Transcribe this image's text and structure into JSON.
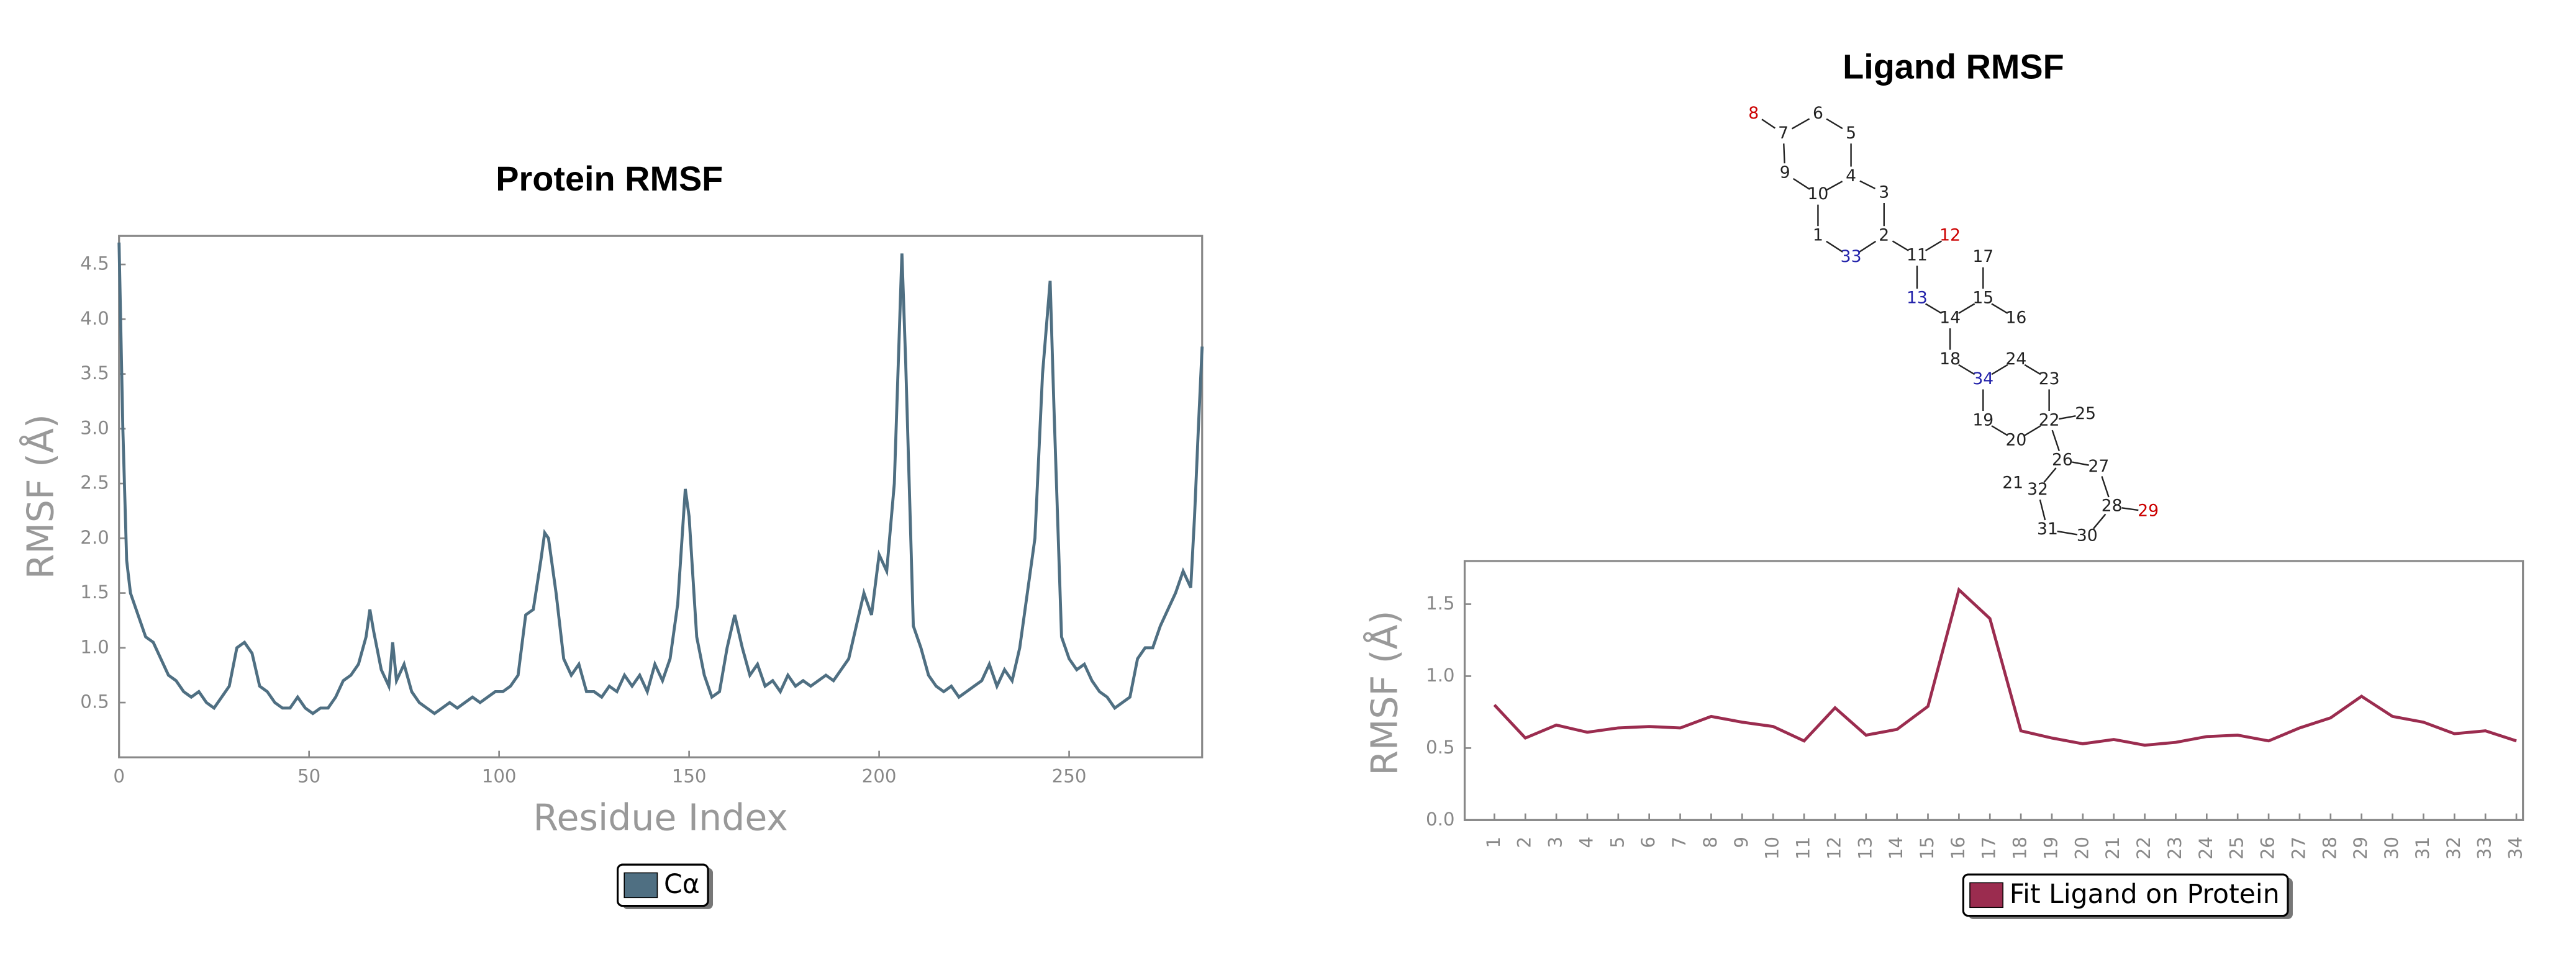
{
  "chart_data": [
    {
      "type": "line",
      "title": "Protein RMSF",
      "x_label": "Residue Index",
      "y_label": "RMSF (Å)",
      "x": [
        0,
        1,
        2,
        3,
        5,
        7,
        9,
        11,
        13,
        15,
        17,
        19,
        21,
        23,
        25,
        27,
        29,
        31,
        33,
        35,
        37,
        39,
        41,
        43,
        45,
        47,
        49,
        51,
        53,
        55,
        57,
        59,
        61,
        63,
        65,
        66,
        67,
        69,
        71,
        72,
        73,
        75,
        77,
        79,
        81,
        83,
        85,
        87,
        89,
        91,
        93,
        95,
        97,
        99,
        101,
        103,
        105,
        107,
        109,
        111,
        112,
        113,
        115,
        117,
        119,
        121,
        123,
        125,
        127,
        129,
        131,
        133,
        135,
        137,
        139,
        141,
        143,
        145,
        147,
        149,
        150,
        152,
        154,
        156,
        158,
        160,
        162,
        164,
        166,
        168,
        170,
        172,
        174,
        176,
        178,
        180,
        182,
        184,
        186,
        188,
        190,
        192,
        194,
        196,
        198,
        200,
        202,
        204,
        206,
        207,
        209,
        211,
        213,
        215,
        217,
        219,
        221,
        223,
        225,
        227,
        229,
        231,
        233,
        235,
        237,
        239,
        241,
        243,
        245,
        246,
        248,
        250,
        252,
        254,
        256,
        258,
        260,
        262,
        264,
        266,
        268,
        270,
        272,
        274,
        276,
        278,
        280,
        282,
        283,
        284,
        285
      ],
      "series": [
        {
          "name": "Cα",
          "color": "#4f6f82",
          "values": [
            4.7,
            3.0,
            1.8,
            1.5,
            1.3,
            1.1,
            1.05,
            0.9,
            0.75,
            0.7,
            0.6,
            0.55,
            0.6,
            0.5,
            0.45,
            0.55,
            0.65,
            1.0,
            1.05,
            0.95,
            0.65,
            0.6,
            0.5,
            0.45,
            0.45,
            0.55,
            0.45,
            0.4,
            0.45,
            0.45,
            0.55,
            0.7,
            0.75,
            0.85,
            1.1,
            1.35,
            1.15,
            0.8,
            0.65,
            1.05,
            0.7,
            0.85,
            0.6,
            0.5,
            0.45,
            0.4,
            0.45,
            0.5,
            0.45,
            0.5,
            0.55,
            0.5,
            0.55,
            0.6,
            0.6,
            0.65,
            0.75,
            1.3,
            1.35,
            1.8,
            2.05,
            2.0,
            1.5,
            0.9,
            0.75,
            0.85,
            0.6,
            0.6,
            0.55,
            0.65,
            0.6,
            0.75,
            0.65,
            0.75,
            0.6,
            0.85,
            0.7,
            0.9,
            1.4,
            2.45,
            2.2,
            1.1,
            0.75,
            0.55,
            0.6,
            1.0,
            1.3,
            1.0,
            0.75,
            0.85,
            0.65,
            0.7,
            0.6,
            0.75,
            0.65,
            0.7,
            0.65,
            0.7,
            0.75,
            0.7,
            0.8,
            0.9,
            1.2,
            1.5,
            1.3,
            1.85,
            1.7,
            2.5,
            4.6,
            3.6,
            1.2,
            1.0,
            0.75,
            0.65,
            0.6,
            0.65,
            0.55,
            0.6,
            0.65,
            0.7,
            0.85,
            0.65,
            0.8,
            0.7,
            1.0,
            1.5,
            2.0,
            3.5,
            4.35,
            3.2,
            1.1,
            0.9,
            0.8,
            0.85,
            0.7,
            0.6,
            0.55,
            0.45,
            0.5,
            0.55,
            0.9,
            1.0,
            1.0,
            1.2,
            1.35,
            1.5,
            1.7,
            1.55,
            2.2,
            3.0,
            3.75
          ]
        }
      ],
      "xlim": [
        0,
        285
      ],
      "xticks": [
        0,
        50,
        100,
        150,
        200,
        250
      ],
      "ylim": [
        0,
        4.76
      ],
      "yticks": [
        0.5,
        {
          "value": 1,
          "label": "1.0"
        },
        1.5,
        {
          "value": 2,
          "label": "2.0"
        },
        2.5,
        {
          "value": 3,
          "label": "3.0"
        },
        3.5,
        {
          "value": 4,
          "label": "4.0"
        },
        4.5
      ]
    },
    {
      "type": "line",
      "title": "Ligand RMSF",
      "y_label": "RMSF (Å)",
      "categories": [
        "1",
        "2",
        "3",
        "4",
        "5",
        "6",
        "7",
        "8",
        "9",
        "10",
        "11",
        "12",
        "13",
        "14",
        "15",
        "16",
        "17",
        "18",
        "19",
        "20",
        "21",
        "22",
        "23",
        "24",
        "25",
        "26",
        "27",
        "28",
        "29",
        "30",
        "31",
        "32",
        "33",
        "34"
      ],
      "series": [
        {
          "name": "Fit Ligand on Protein",
          "color": "#9b2c4f",
          "values": [
            0.8,
            0.57,
            0.66,
            0.61,
            0.64,
            0.65,
            0.64,
            0.72,
            0.68,
            0.65,
            0.55,
            0.78,
            0.59,
            0.63,
            0.79,
            1.6,
            1.4,
            0.62,
            0.57,
            0.53,
            0.56,
            0.52,
            0.54,
            0.58,
            0.59,
            0.55,
            0.64,
            0.71,
            0.86,
            0.72,
            0.68,
            0.6,
            0.62,
            0.55
          ]
        }
      ],
      "ylim": [
        0,
        1.8
      ],
      "yticks": [
        {
          "value": 0,
          "label": "0.0"
        },
        0.5,
        {
          "value": 1,
          "label": "1.0"
        },
        1.5
      ]
    }
  ],
  "ligand_structure": {
    "atoms": [
      "1",
      "2",
      "3",
      "4",
      "5",
      "6",
      "7",
      "8",
      "9",
      "10",
      "11",
      "12",
      "13",
      "14",
      "15",
      "16",
      "17",
      "18",
      "19",
      "20",
      "21",
      "22",
      "23",
      "24",
      "25",
      "26",
      "27",
      "28",
      "29",
      "30",
      "31",
      "32",
      "33",
      "34"
    ]
  }
}
